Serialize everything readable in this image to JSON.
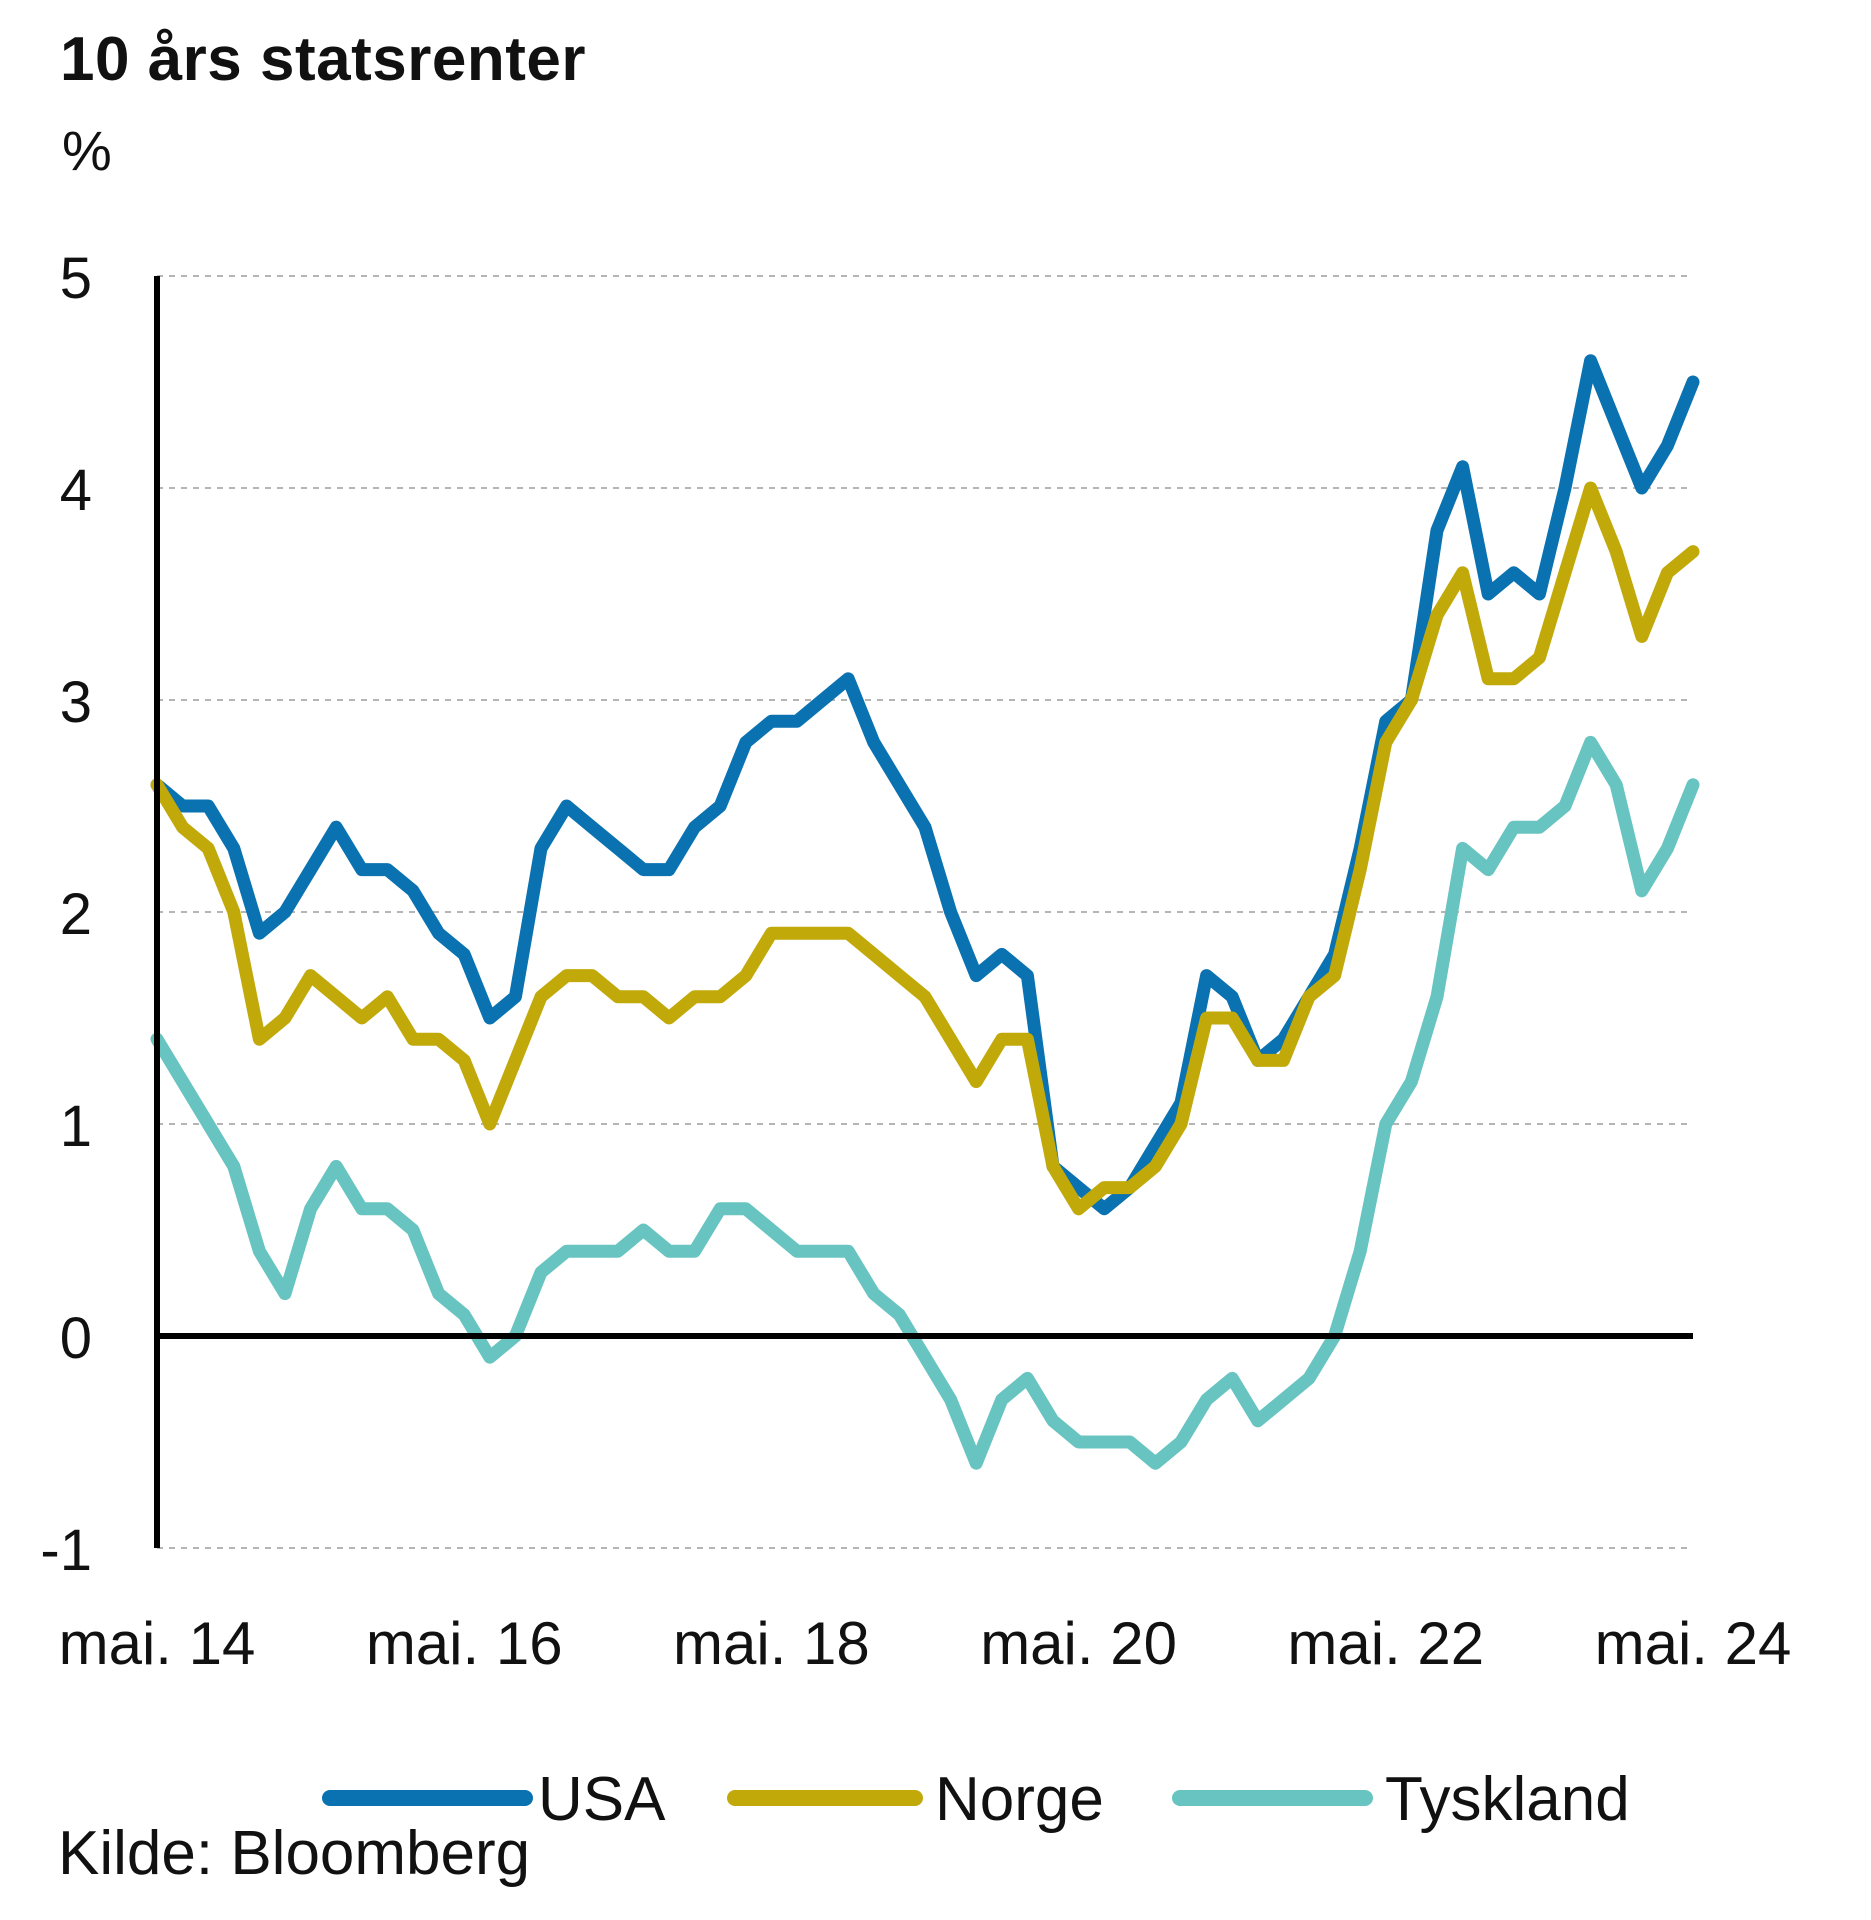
{
  "chart_data": {
    "type": "line",
    "title": "10 års statsrenter",
    "unit": "%",
    "ylim": [
      -1,
      5
    ],
    "yticks": [
      -1,
      0,
      1,
      2,
      3,
      4,
      5
    ],
    "x_ticks": [
      "mai. 14",
      "mai. 16",
      "mai. 18",
      "mai. 20",
      "mai. 22",
      "mai. 24"
    ],
    "x_range": [
      "2014-05",
      "2024-05"
    ],
    "grid": "horizontal-dashed",
    "legend_position": "bottom",
    "source": "Kilde: Bloomberg",
    "x": [
      "2014-05",
      "2014-07",
      "2014-09",
      "2014-11",
      "2015-01",
      "2015-03",
      "2015-05",
      "2015-07",
      "2015-09",
      "2015-11",
      "2016-01",
      "2016-03",
      "2016-05",
      "2016-07",
      "2016-09",
      "2016-11",
      "2017-01",
      "2017-03",
      "2017-05",
      "2017-07",
      "2017-09",
      "2017-11",
      "2018-01",
      "2018-03",
      "2018-05",
      "2018-07",
      "2018-09",
      "2018-11",
      "2019-01",
      "2019-03",
      "2019-05",
      "2019-07",
      "2019-09",
      "2019-11",
      "2020-01",
      "2020-03",
      "2020-05",
      "2020-07",
      "2020-09",
      "2020-11",
      "2021-01",
      "2021-03",
      "2021-05",
      "2021-07",
      "2021-09",
      "2021-11",
      "2022-01",
      "2022-03",
      "2022-05",
      "2022-07",
      "2022-09",
      "2022-11",
      "2023-01",
      "2023-03",
      "2023-05",
      "2023-07",
      "2023-09",
      "2023-11",
      "2024-01",
      "2024-03",
      "2024-05"
    ],
    "series": [
      {
        "name": "USA",
        "color": "#0a72b0",
        "values": [
          2.6,
          2.5,
          2.5,
          2.3,
          1.9,
          2.0,
          2.2,
          2.4,
          2.2,
          2.2,
          2.1,
          1.9,
          1.8,
          1.5,
          1.6,
          2.3,
          2.5,
          2.4,
          2.3,
          2.2,
          2.2,
          2.4,
          2.5,
          2.8,
          2.9,
          2.9,
          3.0,
          3.1,
          2.8,
          2.6,
          2.4,
          2.0,
          1.7,
          1.8,
          1.7,
          0.8,
          0.7,
          0.6,
          0.7,
          0.9,
          1.1,
          1.7,
          1.6,
          1.3,
          1.4,
          1.6,
          1.8,
          2.3,
          2.9,
          3.0,
          3.8,
          4.1,
          3.5,
          3.6,
          3.5,
          4.0,
          4.6,
          4.3,
          4.0,
          4.2,
          4.5
        ]
      },
      {
        "name": "Norge",
        "color": "#c2a90a",
        "values": [
          2.6,
          2.4,
          2.3,
          2.0,
          1.4,
          1.5,
          1.7,
          1.6,
          1.5,
          1.6,
          1.4,
          1.4,
          1.3,
          1.0,
          1.3,
          1.6,
          1.7,
          1.7,
          1.6,
          1.6,
          1.5,
          1.6,
          1.6,
          1.7,
          1.9,
          1.9,
          1.9,
          1.9,
          1.8,
          1.7,
          1.6,
          1.4,
          1.2,
          1.4,
          1.4,
          0.8,
          0.6,
          0.7,
          0.7,
          0.8,
          1.0,
          1.5,
          1.5,
          1.3,
          1.3,
          1.6,
          1.7,
          2.2,
          2.8,
          3.0,
          3.4,
          3.6,
          3.1,
          3.1,
          3.2,
          3.6,
          4.0,
          3.7,
          3.3,
          3.6,
          3.7
        ]
      },
      {
        "name": "Tyskland",
        "color": "#68c4c0",
        "values": [
          1.4,
          1.2,
          1.0,
          0.8,
          0.4,
          0.2,
          0.6,
          0.8,
          0.6,
          0.6,
          0.5,
          0.2,
          0.1,
          -0.1,
          0.0,
          0.3,
          0.4,
          0.4,
          0.4,
          0.5,
          0.4,
          0.4,
          0.6,
          0.6,
          0.5,
          0.4,
          0.4,
          0.4,
          0.2,
          0.1,
          -0.1,
          -0.3,
          -0.6,
          -0.3,
          -0.2,
          -0.4,
          -0.5,
          -0.5,
          -0.5,
          -0.6,
          -0.5,
          -0.3,
          -0.2,
          -0.4,
          -0.3,
          -0.2,
          0.0,
          0.4,
          1.0,
          1.2,
          1.6,
          2.3,
          2.2,
          2.4,
          2.4,
          2.5,
          2.8,
          2.6,
          2.1,
          2.3,
          2.6
        ]
      }
    ]
  }
}
